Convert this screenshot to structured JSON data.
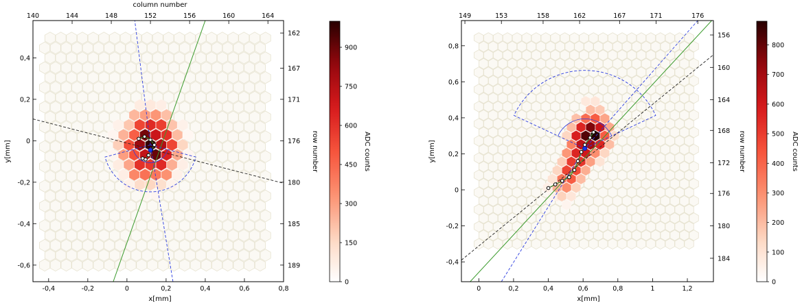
{
  "chart_data": [
    {
      "type": "heatmap",
      "title": "",
      "xlabel": "x[mm]",
      "ylabel": "y[mm]",
      "top_axis_label": "column number",
      "right_axis_label": "row number",
      "colorbar_label": "ADC counts",
      "xlim": [
        -0.48,
        0.8
      ],
      "ylim": [
        -0.68,
        0.58
      ],
      "x_ticks": [
        "-0,4",
        "-0,2",
        "0",
        "0,2",
        "0,4",
        "0,6",
        "0,8"
      ],
      "x_tick_values": [
        -0.4,
        -0.2,
        0,
        0.2,
        0.4,
        0.6,
        0.8
      ],
      "y_ticks": [
        "-0,6",
        "-0,4",
        "-0,2",
        "0",
        "0,2",
        "0,4"
      ],
      "y_tick_values": [
        -0.6,
        -0.4,
        -0.2,
        0,
        0.2,
        0.4
      ],
      "top_ticks": [
        "140",
        "144",
        "148",
        "152",
        "156",
        "160",
        "164"
      ],
      "top_tick_values": [
        -0.48,
        -0.28,
        -0.08,
        0.12,
        0.32,
        0.52,
        0.72
      ],
      "right_ticks": [
        "162",
        "167",
        "171",
        "176",
        "180",
        "185",
        "189"
      ],
      "right_tick_values": [
        0.52,
        0.35,
        0.2,
        0.0,
        -0.2,
        -0.4,
        -0.6
      ],
      "colorbar_ticks": [
        "0",
        "150",
        "300",
        "450",
        "600",
        "750",
        "900"
      ],
      "colorbar_tick_values": [
        0,
        150,
        300,
        450,
        600,
        750,
        900
      ],
      "colorbar_max": 1000,
      "grid": false,
      "hex_grid": {
        "x0": -0.42,
        "x1": 0.72,
        "y0": -0.6,
        "y1": 0.52,
        "pitch": 0.055
      },
      "cells": [
        {
          "x": 0.12,
          "y": -0.02,
          "v": 980
        },
        {
          "x": 0.065,
          "y": -0.02,
          "v": 820
        },
        {
          "x": 0.175,
          "y": -0.02,
          "v": 760
        },
        {
          "x": 0.0925,
          "y": 0.028,
          "v": 880
        },
        {
          "x": 0.1475,
          "y": 0.028,
          "v": 700
        },
        {
          "x": 0.0925,
          "y": -0.068,
          "v": 720
        },
        {
          "x": 0.1475,
          "y": -0.068,
          "v": 900
        },
        {
          "x": 0.12,
          "y": 0.076,
          "v": 620
        },
        {
          "x": 0.065,
          "y": 0.076,
          "v": 540
        },
        {
          "x": 0.175,
          "y": 0.076,
          "v": 560
        },
        {
          "x": 0.01,
          "y": -0.02,
          "v": 520
        },
        {
          "x": 0.23,
          "y": -0.02,
          "v": 540
        },
        {
          "x": 0.0375,
          "y": 0.028,
          "v": 470
        },
        {
          "x": 0.2025,
          "y": 0.028,
          "v": 600
        },
        {
          "x": 0.0375,
          "y": -0.068,
          "v": 510
        },
        {
          "x": 0.2025,
          "y": -0.068,
          "v": 650
        },
        {
          "x": 0.065,
          "y": -0.116,
          "v": 600
        },
        {
          "x": 0.12,
          "y": -0.116,
          "v": 580
        },
        {
          "x": 0.175,
          "y": -0.116,
          "v": 620
        },
        {
          "x": 0.0925,
          "y": -0.164,
          "v": 420
        },
        {
          "x": 0.1475,
          "y": -0.164,
          "v": 400
        },
        {
          "x": 0.0375,
          "y": -0.164,
          "v": 360
        },
        {
          "x": 0.2025,
          "y": -0.164,
          "v": 330
        },
        {
          "x": 0.0925,
          "y": 0.124,
          "v": 300
        },
        {
          "x": 0.1475,
          "y": 0.124,
          "v": 320
        },
        {
          "x": 0.0375,
          "y": 0.124,
          "v": 240
        },
        {
          "x": 0.2025,
          "y": 0.124,
          "v": 220
        },
        {
          "x": -0.0175,
          "y": 0.028,
          "v": 250
        },
        {
          "x": 0.2575,
          "y": 0.028,
          "v": 230
        },
        {
          "x": -0.0175,
          "y": -0.068,
          "v": 300
        },
        {
          "x": 0.2575,
          "y": -0.068,
          "v": 270
        },
        {
          "x": -0.045,
          "y": -0.02,
          "v": 180
        },
        {
          "x": 0.285,
          "y": -0.02,
          "v": 160
        },
        {
          "x": 0.01,
          "y": -0.116,
          "v": 280
        },
        {
          "x": 0.23,
          "y": -0.116,
          "v": 260
        },
        {
          "x": 0.01,
          "y": 0.076,
          "v": 200
        },
        {
          "x": 0.23,
          "y": 0.076,
          "v": 210
        },
        {
          "x": 0.065,
          "y": -0.212,
          "v": 140
        },
        {
          "x": 0.12,
          "y": -0.212,
          "v": 160
        },
        {
          "x": 0.175,
          "y": -0.212,
          "v": 130
        },
        {
          "x": 0.12,
          "y": 0.172,
          "v": 90
        },
        {
          "x": 0.065,
          "y": 0.172,
          "v": 80
        },
        {
          "x": 0.175,
          "y": 0.172,
          "v": 70
        },
        {
          "x": -0.045,
          "y": 0.076,
          "v": 60
        },
        {
          "x": 0.285,
          "y": 0.076,
          "v": 60
        },
        {
          "x": -0.045,
          "y": -0.116,
          "v": 80
        },
        {
          "x": 0.285,
          "y": -0.116,
          "v": 70
        },
        {
          "x": 0.01,
          "y": -0.212,
          "v": 60
        },
        {
          "x": 0.23,
          "y": -0.212,
          "v": 50
        },
        {
          "x": 0.0925,
          "y": -0.26,
          "v": 40
        },
        {
          "x": 0.1475,
          "y": -0.26,
          "v": 40
        },
        {
          "x": -0.0175,
          "y": -0.164,
          "v": 70
        },
        {
          "x": 0.2575,
          "y": -0.164,
          "v": 60
        },
        {
          "x": -0.0725,
          "y": 0.028,
          "v": 40
        },
        {
          "x": 0.3125,
          "y": -0.068,
          "v": 40
        },
        {
          "x": -0.0725,
          "y": -0.068,
          "v": 40
        },
        {
          "x": 0.3125,
          "y": 0.028,
          "v": 35
        }
      ],
      "lines": [
        {
          "style": "green-solid",
          "points": [
            [
              -0.07,
              -0.68
            ],
            [
              0.4,
              0.58
            ]
          ]
        },
        {
          "style": "black-dashed",
          "points": [
            [
              -0.48,
              0.105
            ],
            [
              0.8,
              -0.205
            ]
          ]
        },
        {
          "style": "blue-dashed",
          "points": [
            [
              0.235,
              -0.68
            ],
            [
              0.12,
              -0.02
            ],
            [
              0.04,
              0.58
            ]
          ]
        }
      ],
      "blue_arc": {
        "center": [
          0.12,
          -0.02
        ],
        "r": 0.24,
        "from_deg": 15,
        "to_deg": 165,
        "under": true
      },
      "track": [
        [
          0.06,
          0.01
        ],
        [
          0.09,
          0.02
        ],
        [
          0.12,
          0.005
        ],
        [
          0.14,
          -0.02
        ],
        [
          0.125,
          -0.045
        ],
        [
          0.11,
          -0.07
        ],
        [
          0.095,
          -0.09
        ],
        [
          0.08,
          -0.085
        ]
      ],
      "centroid": [
        0.12,
        -0.045
      ]
    },
    {
      "type": "heatmap",
      "title": "",
      "xlabel": "x[mm]",
      "ylabel": "y[mm]",
      "top_axis_label": "",
      "right_axis_label": "row number",
      "colorbar_label": "ADC counts",
      "xlim": [
        -0.1,
        1.35
      ],
      "ylim": [
        -0.51,
        0.94
      ],
      "x_ticks": [
        "0",
        "0,2",
        "0,4",
        "0,6",
        "0,8",
        "1",
        "1,2"
      ],
      "x_tick_values": [
        0,
        0.2,
        0.4,
        0.6,
        0.8,
        1.0,
        1.2
      ],
      "y_ticks": [
        "-0,4",
        "-0,2",
        "0",
        "0,2",
        "0,4",
        "0,6",
        "0,8"
      ],
      "y_tick_values": [
        -0.4,
        -0.2,
        0,
        0.2,
        0.4,
        0.6,
        0.8
      ],
      "top_ticks": [
        "149",
        "153",
        "158",
        "162",
        "167",
        "171",
        "176"
      ],
      "top_tick_values": [
        -0.08,
        0.13,
        0.37,
        0.58,
        0.81,
        1.02,
        1.26
      ],
      "right_ticks": [
        "156",
        "160",
        "164",
        "168",
        "172",
        "176",
        "180",
        "184"
      ],
      "right_tick_values": [
        0.86,
        0.68,
        0.5,
        0.33,
        0.15,
        -0.02,
        -0.2,
        -0.38
      ],
      "colorbar_ticks": [
        "0",
        "100",
        "200",
        "300",
        "400",
        "500",
        "600",
        "700",
        "800"
      ],
      "colorbar_tick_values": [
        0,
        100,
        200,
        300,
        400,
        500,
        600,
        700,
        800
      ],
      "colorbar_max": 880,
      "grid": false,
      "hex_grid": {
        "x0": -0.0,
        "x1": 1.26,
        "y0": -0.3,
        "y1": 0.88,
        "pitch": 0.055
      },
      "cells": [
        {
          "x": 0.67,
          "y": 0.3,
          "v": 880
        },
        {
          "x": 0.6425,
          "y": 0.348,
          "v": 760
        },
        {
          "x": 0.6975,
          "y": 0.348,
          "v": 620
        },
        {
          "x": 0.615,
          "y": 0.3,
          "v": 820
        },
        {
          "x": 0.6425,
          "y": 0.252,
          "v": 700
        },
        {
          "x": 0.6975,
          "y": 0.252,
          "v": 560
        },
        {
          "x": 0.5875,
          "y": 0.348,
          "v": 560
        },
        {
          "x": 0.5875,
          "y": 0.252,
          "v": 640
        },
        {
          "x": 0.56,
          "y": 0.3,
          "v": 580
        },
        {
          "x": 0.615,
          "y": 0.204,
          "v": 600
        },
        {
          "x": 0.56,
          "y": 0.204,
          "v": 560
        },
        {
          "x": 0.5875,
          "y": 0.156,
          "v": 520
        },
        {
          "x": 0.5325,
          "y": 0.156,
          "v": 500
        },
        {
          "x": 0.56,
          "y": 0.108,
          "v": 460
        },
        {
          "x": 0.505,
          "y": 0.108,
          "v": 480
        },
        {
          "x": 0.5325,
          "y": 0.06,
          "v": 420
        },
        {
          "x": 0.4775,
          "y": 0.06,
          "v": 360
        },
        {
          "x": 0.505,
          "y": 0.012,
          "v": 300
        },
        {
          "x": 0.45,
          "y": 0.012,
          "v": 220
        },
        {
          "x": 0.4775,
          "y": -0.036,
          "v": 150
        },
        {
          "x": 0.615,
          "y": 0.396,
          "v": 380
        },
        {
          "x": 0.67,
          "y": 0.396,
          "v": 420
        },
        {
          "x": 0.725,
          "y": 0.3,
          "v": 420
        },
        {
          "x": 0.7525,
          "y": 0.348,
          "v": 240
        },
        {
          "x": 0.725,
          "y": 0.396,
          "v": 250
        },
        {
          "x": 0.6425,
          "y": 0.444,
          "v": 200
        },
        {
          "x": 0.6975,
          "y": 0.444,
          "v": 170
        },
        {
          "x": 0.5325,
          "y": 0.252,
          "v": 330
        },
        {
          "x": 0.505,
          "y": 0.204,
          "v": 280
        },
        {
          "x": 0.67,
          "y": 0.204,
          "v": 300
        },
        {
          "x": 0.6425,
          "y": 0.156,
          "v": 260
        },
        {
          "x": 0.615,
          "y": 0.108,
          "v": 230
        },
        {
          "x": 0.5875,
          "y": 0.06,
          "v": 200
        },
        {
          "x": 0.56,
          "y": 0.012,
          "v": 150
        },
        {
          "x": 0.5325,
          "y": -0.036,
          "v": 90
        },
        {
          "x": 0.4775,
          "y": 0.156,
          "v": 160
        },
        {
          "x": 0.45,
          "y": 0.108,
          "v": 140
        },
        {
          "x": 0.4225,
          "y": 0.06,
          "v": 100
        },
        {
          "x": 0.395,
          "y": 0.012,
          "v": 60
        },
        {
          "x": 0.56,
          "y": 0.396,
          "v": 190
        },
        {
          "x": 0.5325,
          "y": 0.348,
          "v": 200
        },
        {
          "x": 0.7525,
          "y": 0.252,
          "v": 200
        },
        {
          "x": 0.725,
          "y": 0.204,
          "v": 140
        },
        {
          "x": 0.78,
          "y": 0.3,
          "v": 130
        },
        {
          "x": 0.67,
          "y": 0.492,
          "v": 90
        },
        {
          "x": 0.615,
          "y": 0.492,
          "v": 80
        },
        {
          "x": 0.505,
          "y": 0.3,
          "v": 140
        },
        {
          "x": 0.6975,
          "y": 0.156,
          "v": 100
        },
        {
          "x": 0.45,
          "y": -0.036,
          "v": 60
        },
        {
          "x": 0.505,
          "y": -0.084,
          "v": 40
        },
        {
          "x": 0.4225,
          "y": -0.036,
          "v": 40
        }
      ],
      "lines": [
        {
          "style": "green-solid",
          "points": [
            [
              -0.05,
              -0.51
            ],
            [
              1.34,
              0.94
            ]
          ]
        },
        {
          "style": "black-dashed",
          "points": [
            [
              -0.1,
              -0.39
            ],
            [
              1.35,
              0.75
            ]
          ]
        },
        {
          "style": "blue-dashed",
          "points": [
            [
              0.13,
              -0.51
            ],
            [
              0.61,
              0.23
            ],
            [
              1.26,
              0.94
            ]
          ]
        }
      ],
      "blue_arc": {
        "center": [
          0.61,
          0.23
        ],
        "r": 0.45,
        "from_deg": 205,
        "to_deg": 335,
        "under": true
      },
      "track": [
        [
          0.4,
          0.01
        ],
        [
          0.44,
          0.03
        ],
        [
          0.48,
          0.05
        ],
        [
          0.52,
          0.07
        ],
        [
          0.55,
          0.11
        ],
        [
          0.57,
          0.16
        ],
        [
          0.59,
          0.21
        ],
        [
          0.61,
          0.25
        ],
        [
          0.64,
          0.29
        ],
        [
          0.66,
          0.32
        ]
      ],
      "centroid": [
        0.61,
        0.23
      ]
    }
  ]
}
